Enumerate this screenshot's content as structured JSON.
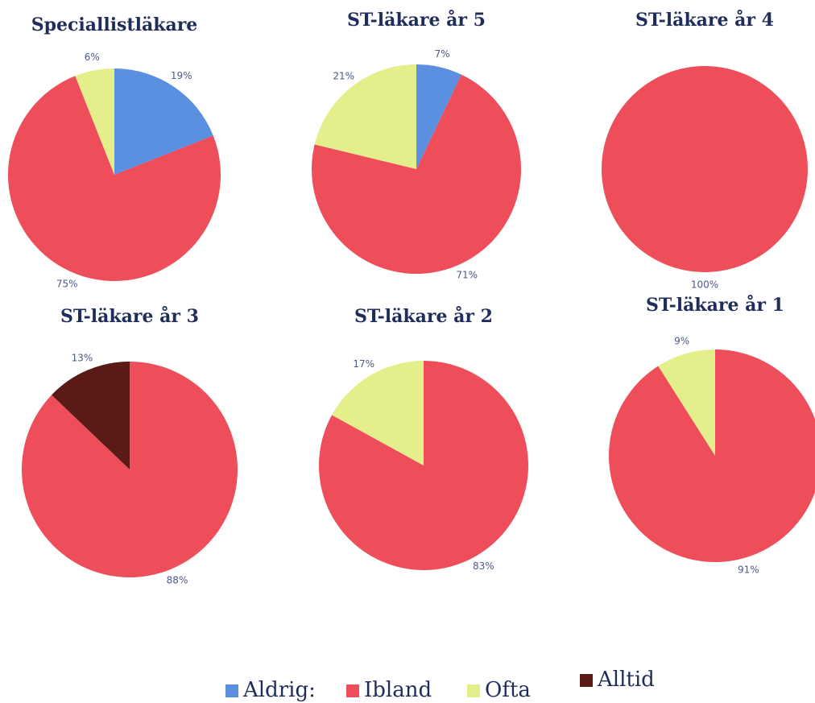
{
  "chart_data": [
    {
      "type": "pie",
      "title": "Speciallistläkare",
      "values": [
        19,
        75,
        6,
        null
      ],
      "value_labels": [
        "19%",
        "75%",
        "6%",
        null
      ]
    },
    {
      "type": "pie",
      "title": "ST-läkare år 5",
      "values": [
        7,
        71,
        21,
        null
      ],
      "value_labels": [
        "7%",
        "71%",
        "21%",
        null
      ]
    },
    {
      "type": "pie",
      "title": "ST-läkare år 4",
      "values": [
        null,
        100,
        null,
        null
      ],
      "value_labels": [
        null,
        "100%",
        null,
        null
      ]
    },
    {
      "type": "pie",
      "title": "ST-läkare år 3",
      "values": [
        null,
        88,
        null,
        13
      ],
      "value_labels": [
        null,
        "88%",
        null,
        "13%"
      ]
    },
    {
      "type": "pie",
      "title": "ST-läkare år 2",
      "values": [
        null,
        83,
        17,
        null
      ],
      "value_labels": [
        null,
        "83%",
        "17%",
        null
      ]
    },
    {
      "type": "pie",
      "title": "ST-läkare år 1",
      "values": [
        null,
        91,
        9,
        null
      ],
      "value_labels": [
        null,
        "91%",
        "9%",
        null
      ]
    }
  ],
  "legend": [
    {
      "name": "Aldrig:",
      "color": "#5b8fe0"
    },
    {
      "name": "Ibland",
      "color": "#ee4d5a"
    },
    {
      "name": "Ofta",
      "color": "#e4ef8c"
    },
    {
      "name": "Alltid",
      "color": "#5a1a16"
    }
  ]
}
